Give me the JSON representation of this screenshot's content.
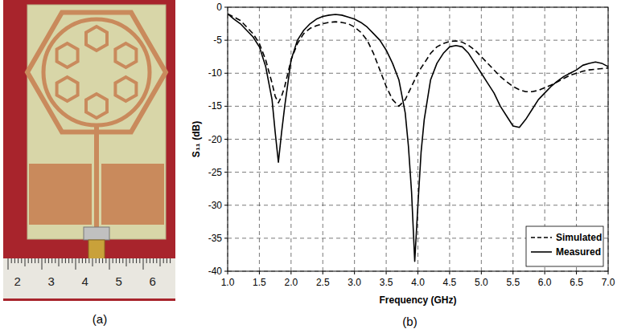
{
  "photo": {
    "ruler_labels": [
      "2",
      "3",
      "4",
      "5",
      "6"
    ]
  },
  "captions": {
    "a": "(a)",
    "b": "(b)"
  },
  "chart_data": {
    "type": "line",
    "x_label": "Frequency (GHz)",
    "y_label": "S₁₁ (dB)",
    "x": [
      1.0,
      1.1,
      1.2,
      1.3,
      1.4,
      1.5,
      1.6,
      1.7,
      1.75,
      1.8,
      1.85,
      1.9,
      2.0,
      2.1,
      2.2,
      2.3,
      2.4,
      2.5,
      2.6,
      2.7,
      2.8,
      2.9,
      3.0,
      3.1,
      3.2,
      3.3,
      3.4,
      3.5,
      3.6,
      3.7,
      3.8,
      3.85,
      3.9,
      3.95,
      4.0,
      4.05,
      4.1,
      4.2,
      4.3,
      4.4,
      4.5,
      4.6,
      4.7,
      4.8,
      4.9,
      5.0,
      5.1,
      5.2,
      5.3,
      5.4,
      5.5,
      5.6,
      5.7,
      5.8,
      5.9,
      6.0,
      6.1,
      6.2,
      6.3,
      6.4,
      6.5,
      6.6,
      6.7,
      6.8,
      6.9,
      7.0
    ],
    "series": [
      {
        "name": "Simulated",
        "color": "#000000",
        "line_style": "dashed",
        "values": [
          -1,
          -1.5,
          -2,
          -3,
          -4,
          -5.5,
          -8,
          -11.5,
          -13.5,
          -14.5,
          -13.5,
          -12,
          -8,
          -5.5,
          -4,
          -3.2,
          -2.8,
          -2.5,
          -2.3,
          -2.2,
          -2.3,
          -2.5,
          -3,
          -3.8,
          -5,
          -7,
          -9.5,
          -12,
          -14,
          -15,
          -14,
          -13,
          -12,
          -11,
          -10,
          -9.2,
          -8.5,
          -7,
          -6,
          -5.5,
          -5.2,
          -5.1,
          -5.3,
          -5.8,
          -6.5,
          -7.5,
          -8.5,
          -9.5,
          -10.5,
          -11.3,
          -12,
          -12.5,
          -12.8,
          -12.8,
          -12.6,
          -12.2,
          -11.8,
          -11.3,
          -10.8,
          -10.3,
          -10,
          -9.7,
          -9.5,
          -9.4,
          -9.3,
          -9.2
        ]
      },
      {
        "name": "Measured",
        "color": "#000000",
        "line_style": "solid",
        "values": [
          -1,
          -1.8,
          -2.5,
          -3.5,
          -4.5,
          -6,
          -9,
          -14,
          -19,
          -23.5,
          -19,
          -15,
          -8,
          -5,
          -3.5,
          -2.5,
          -1.8,
          -1.4,
          -1.2,
          -1.1,
          -1.2,
          -1.5,
          -1.8,
          -2.3,
          -3,
          -4,
          -5,
          -6.5,
          -8.5,
          -11,
          -16,
          -21,
          -28,
          -38.5,
          -30,
          -22,
          -17,
          -11,
          -8.5,
          -7,
          -6,
          -5.8,
          -6,
          -7,
          -8.5,
          -10,
          -11.5,
          -13,
          -15,
          -16.5,
          -18,
          -18.2,
          -17,
          -15.5,
          -14,
          -13,
          -12,
          -11.2,
          -10.5,
          -10,
          -9.5,
          -8.8,
          -8.5,
          -8.3,
          -8.5,
          -9
        ]
      }
    ],
    "xlim": [
      1.0,
      7.0
    ],
    "ylim": [
      -40,
      0
    ],
    "xticks": [
      {
        "value": 1.0,
        "label": "1.0"
      },
      {
        "value": 1.5,
        "label": "1.5"
      },
      {
        "value": 2.0,
        "label": "2.0"
      },
      {
        "value": 2.5,
        "label": "2.5"
      },
      {
        "value": 3.0,
        "label": "3.0"
      },
      {
        "value": 3.5,
        "label": "3.5"
      },
      {
        "value": 4.0,
        "label": "4.0"
      },
      {
        "value": 4.5,
        "label": "4.5"
      },
      {
        "value": 5.0,
        "label": "5.0"
      },
      {
        "value": 5.5,
        "label": "5.5"
      },
      {
        "value": 6.0,
        "label": "6.0"
      },
      {
        "value": 6.5,
        "label": "6.5"
      },
      {
        "value": 7.0,
        "label": "7.0"
      }
    ],
    "yticks": [
      0,
      -5,
      -10,
      -15,
      -20,
      -25,
      -30,
      -35,
      -40
    ],
    "grid": true,
    "legend": "lower right"
  }
}
